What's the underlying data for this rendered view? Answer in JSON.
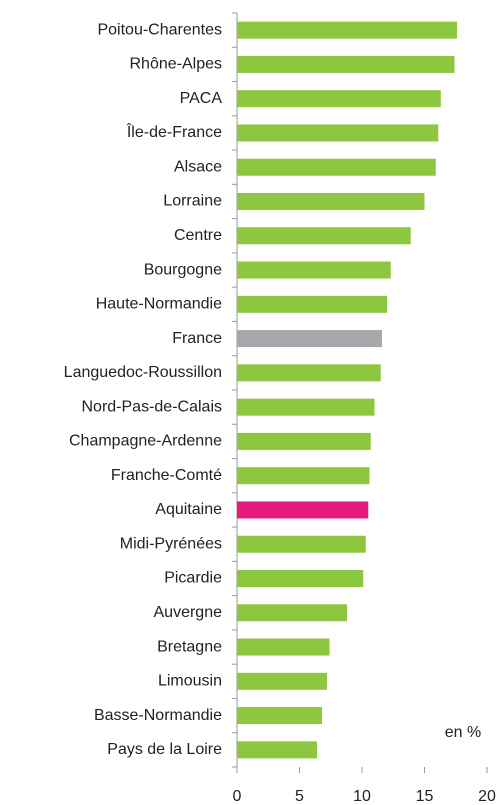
{
  "chart_data": {
    "type": "barh",
    "categories": [
      "Poitou-Charentes",
      "Rhône-Alpes",
      "PACA",
      "Île-de-France",
      "Alsace",
      "Lorraine",
      "Centre",
      "Bourgogne",
      "Haute-Normandie",
      "France",
      "Languedoc-Roussillon",
      "Nord-Pas-de-Calais",
      "Champagne-Ardenne",
      "Franche-Comté",
      "Aquitaine",
      "Midi-Pyrénées",
      "Picardie",
      "Auvergne",
      "Bretagne",
      "Limousin",
      "Basse-Normandie",
      "Pays de la Loire"
    ],
    "values": [
      17.6,
      17.4,
      16.3,
      16.1,
      15.9,
      15.0,
      13.9,
      12.3,
      12.0,
      11.6,
      11.5,
      11.0,
      10.7,
      10.6,
      10.5,
      10.3,
      10.1,
      8.8,
      7.4,
      7.2,
      6.8,
      6.4
    ],
    "colors": [
      "#8dc63f",
      "#8dc63f",
      "#8dc63f",
      "#8dc63f",
      "#8dc63f",
      "#8dc63f",
      "#8dc63f",
      "#8dc63f",
      "#8dc63f",
      "#a6a8ab",
      "#8dc63f",
      "#8dc63f",
      "#8dc63f",
      "#8dc63f",
      "#e6197d",
      "#8dc63f",
      "#8dc63f",
      "#8dc63f",
      "#8dc63f",
      "#8dc63f",
      "#8dc63f",
      "#8dc63f"
    ],
    "xlim": [
      0,
      20
    ],
    "xticks": [
      0,
      5,
      10,
      15,
      20
    ],
    "annotation": "en %"
  }
}
